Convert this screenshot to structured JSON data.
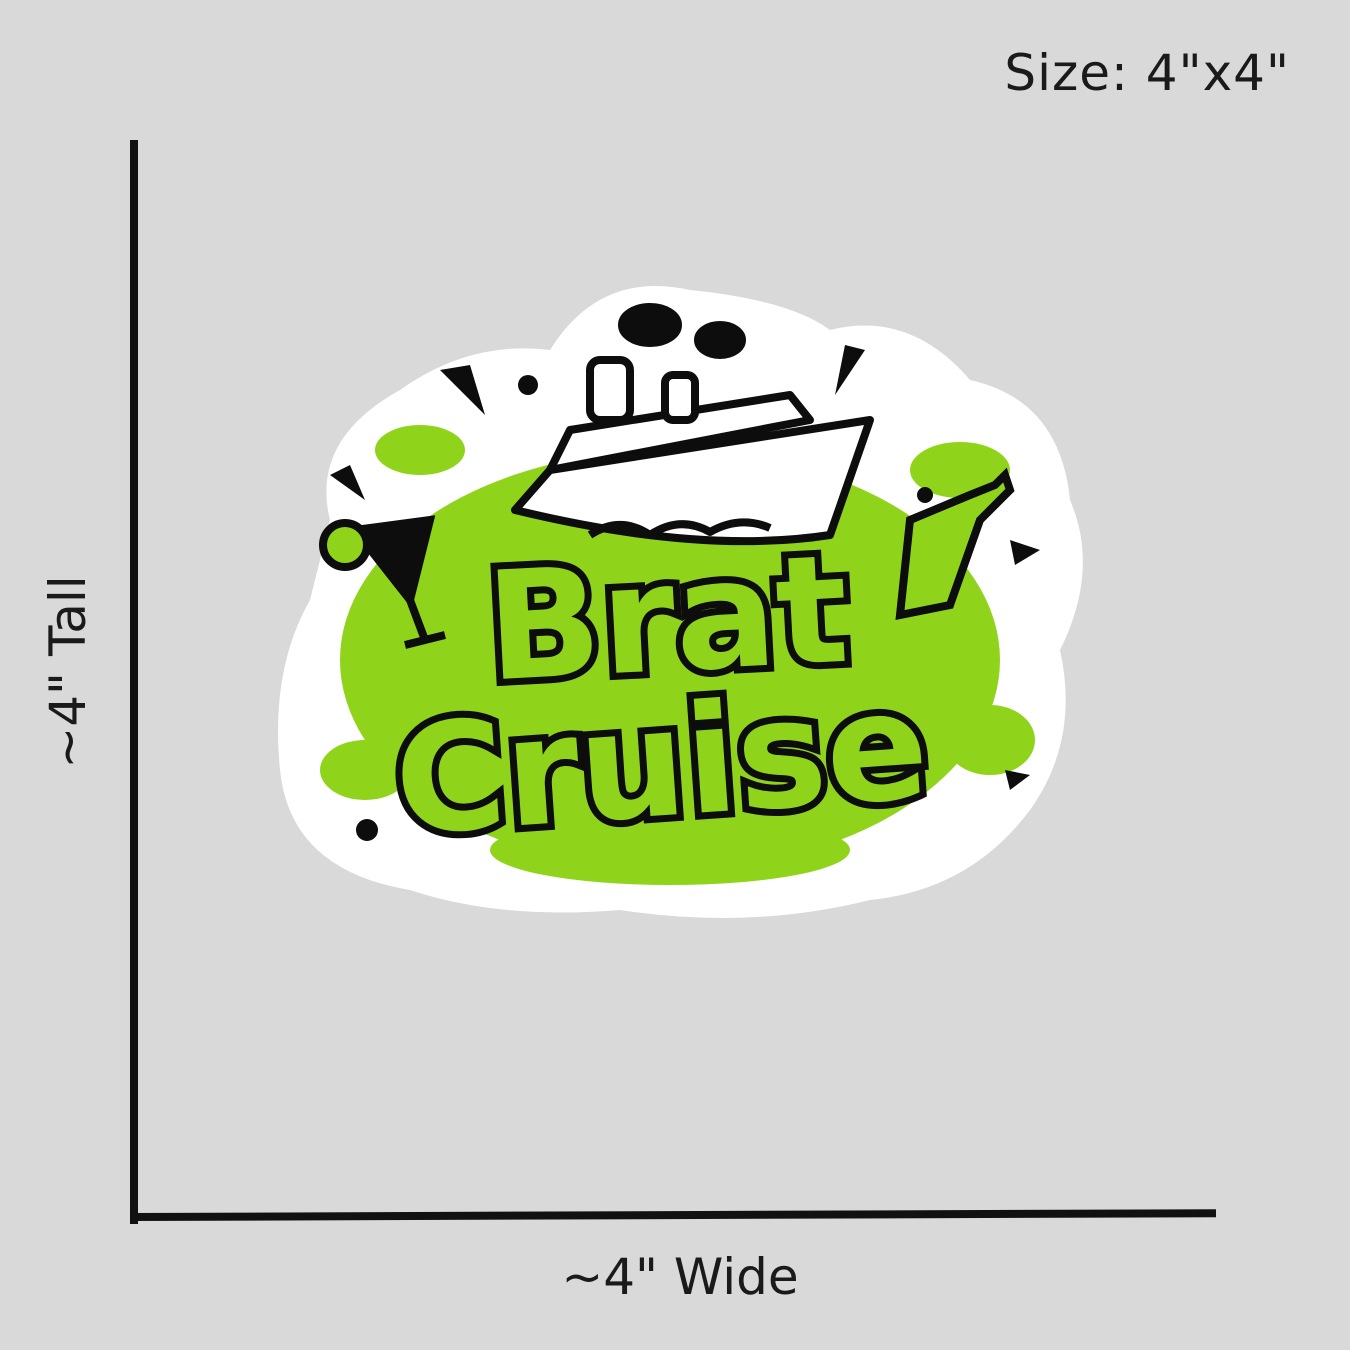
{
  "size_label": "Size: 4\"x4\"",
  "width_label": "~4\" Wide",
  "height_label": "~4\" Tall",
  "sticker": {
    "line1": "Brat",
    "line2": "Cruise",
    "colors": {
      "green": "#8fd41a",
      "outline": "#0d0d0d",
      "border": "#ffffff",
      "background": "#d9d9d9"
    },
    "icons": [
      "cruise-ship",
      "cocktail-glass",
      "bottle",
      "confetti",
      "splash"
    ]
  }
}
